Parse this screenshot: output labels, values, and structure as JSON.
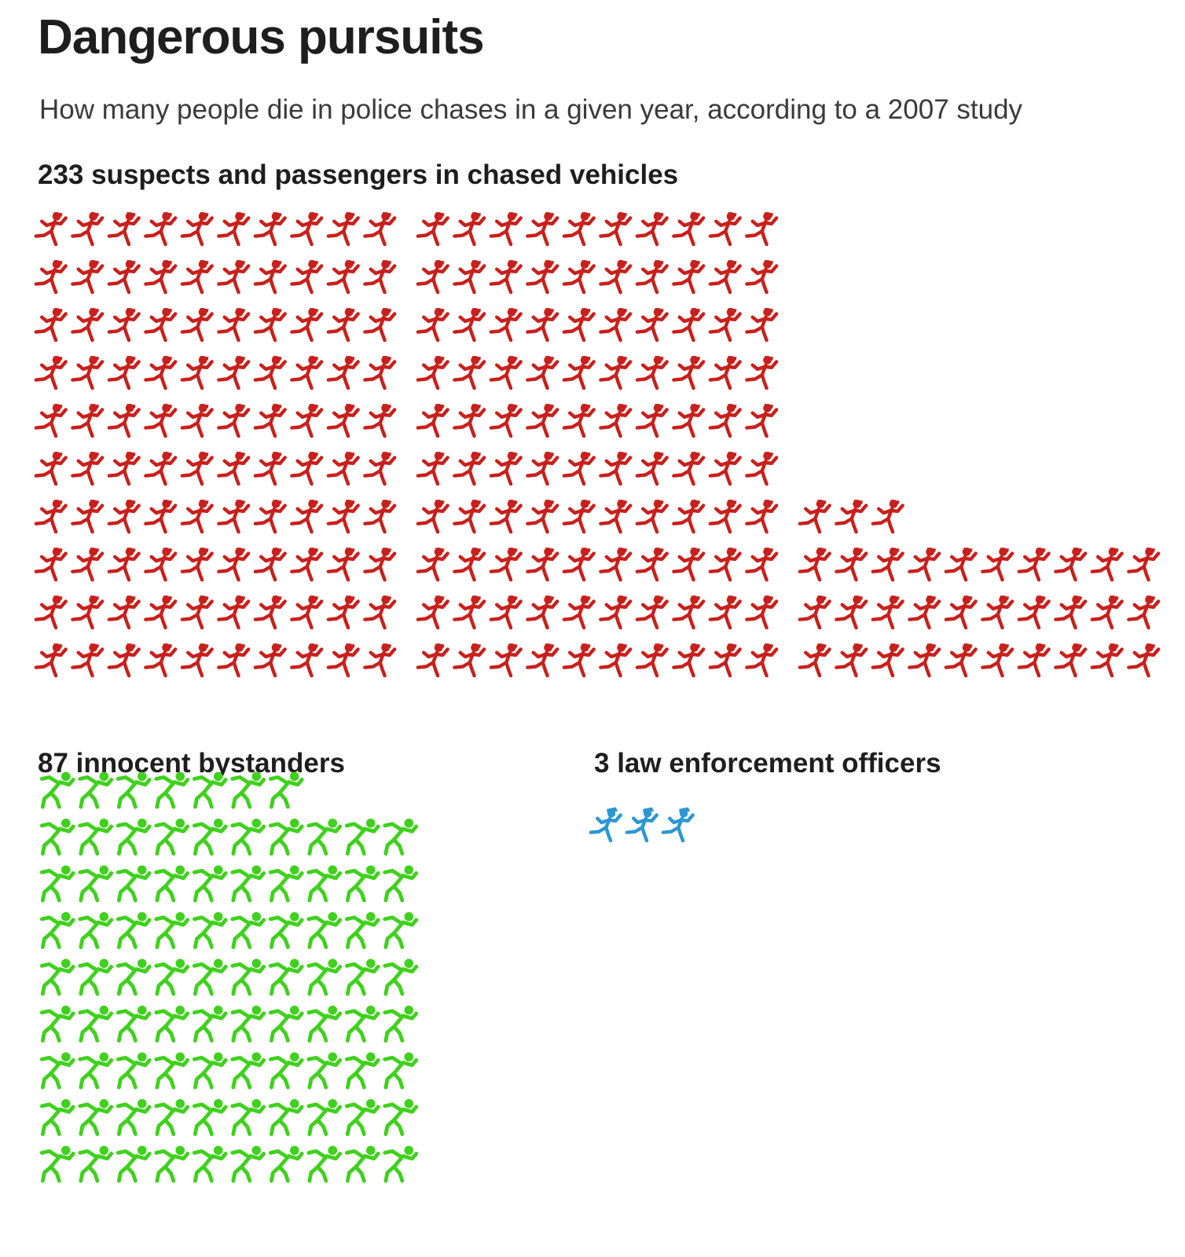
{
  "title": "Dangerous pursuits",
  "subtitle": "How many people die in police chases in a given year, according to a 2007 study",
  "chart_data": {
    "type": "pictogram",
    "categories": [
      "suspects and passengers in chased vehicles",
      "innocent bystanders",
      "law enforcement officers"
    ],
    "values": [
      233,
      87,
      3
    ],
    "groups": [
      {
        "id": "suspects",
        "value": 233,
        "label": "233 suspects and passengers in chased vehicles",
        "color": "#c8201c",
        "icon": "running-suspect-icon"
      },
      {
        "id": "bystanders",
        "value": 87,
        "label": "87 innocent bystanders",
        "color": "#3fd11d",
        "icon": "falling-person-icon"
      },
      {
        "id": "officers",
        "value": 3,
        "label": "3 law enforcement officers",
        "color": "#2b97d3",
        "icon": "running-officer-icon"
      }
    ],
    "unit": "1 icon = 1 person"
  }
}
